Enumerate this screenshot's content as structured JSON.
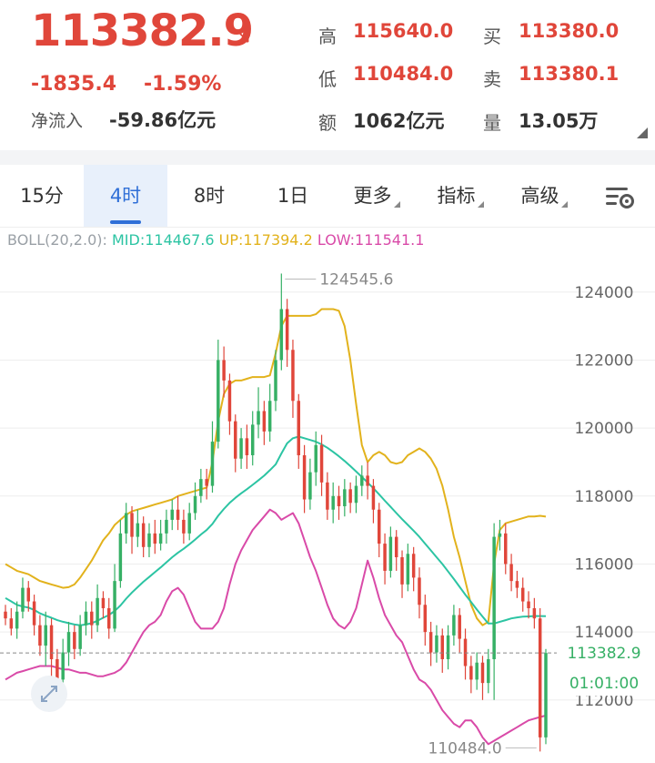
{
  "quote": {
    "price": "113382.9",
    "change": "-1835.4",
    "change_pct": "-1.59%",
    "netflow_label": "净流入",
    "netflow_value": "-59.86亿元",
    "stats": [
      {
        "label": "高",
        "value": "115640.0",
        "color": "#e0463a"
      },
      {
        "label": "买",
        "value": "113380.0",
        "color": "#e0463a"
      },
      {
        "label": "低",
        "value": "110484.0",
        "color": "#e0463a"
      },
      {
        "label": "卖",
        "value": "113380.1",
        "color": "#e0463a"
      },
      {
        "label": "额",
        "value": "1062亿元",
        "color": "#333333"
      },
      {
        "label": "量",
        "value": "13.05万",
        "color": "#333333"
      }
    ]
  },
  "tabs": [
    {
      "label": "15分",
      "active": false,
      "dropdown": false
    },
    {
      "label": "4时",
      "active": true,
      "dropdown": false
    },
    {
      "label": "8时",
      "active": false,
      "dropdown": false
    },
    {
      "label": "1日",
      "active": false,
      "dropdown": false
    },
    {
      "label": "更多",
      "active": false,
      "dropdown": true
    },
    {
      "label": "指标",
      "active": false,
      "dropdown": true
    },
    {
      "label": "高级",
      "active": false,
      "dropdown": true
    }
  ],
  "indicator": {
    "name": "BOLL(20,2.0):",
    "mid": "MID:114467.6",
    "up": "UP:117394.2",
    "low": "LOW:111541.1",
    "colors": {
      "name": "#9aa0a6",
      "mid": "#2cc4a3",
      "up": "#e2b21c",
      "low": "#d94aa8"
    }
  },
  "chart_data": {
    "type": "candlestick",
    "y_ticks": [
      124000,
      122000,
      120000,
      118000,
      116000,
      114000,
      112000
    ],
    "ylim": [
      110200,
      125200
    ],
    "current_price_label": "113382.9",
    "countdown": "01:01:00",
    "max_label": "124545.6",
    "min_label": "110484.0",
    "colors": {
      "up": "#36b065",
      "down": "#e0463a",
      "mid": "#2cc4a3",
      "upper": "#e2b21c",
      "lower": "#d94aa8",
      "price_line": "#888888"
    },
    "candles": [
      [
        114600,
        114400,
        114800,
        114200
      ],
      [
        114400,
        114100,
        114700,
        113900
      ],
      [
        114100,
        114600,
        114900,
        113800
      ],
      [
        114600,
        115300,
        115600,
        114400
      ],
      [
        115300,
        114900,
        115500,
        114600
      ],
      [
        114900,
        114200,
        115100,
        113900
      ],
      [
        114200,
        113600,
        114500,
        113300
      ],
      [
        113600,
        114200,
        114600,
        113000
      ],
      [
        114200,
        113200,
        114400,
        112700
      ],
      [
        113200,
        112600,
        113500,
        112300
      ],
      [
        112600,
        113400,
        113800,
        112300
      ],
      [
        113400,
        114000,
        114300,
        113000
      ],
      [
        114000,
        113500,
        114200,
        113200
      ],
      [
        113500,
        114200,
        114500,
        113300
      ],
      [
        114200,
        114600,
        114900,
        113900
      ],
      [
        114600,
        114200,
        114900,
        113800
      ],
      [
        114200,
        115000,
        115400,
        114000
      ],
      [
        115000,
        114700,
        115200,
        114400
      ],
      [
        114700,
        114100,
        115000,
        113800
      ],
      [
        114100,
        115500,
        116000,
        114000
      ],
      [
        115500,
        116900,
        117300,
        115300
      ],
      [
        116900,
        117500,
        117800,
        116600
      ],
      [
        117500,
        116800,
        117700,
        116300
      ],
      [
        116800,
        117200,
        117600,
        116500
      ],
      [
        117200,
        116500,
        117400,
        116200
      ],
      [
        116500,
        116900,
        117200,
        116200
      ],
      [
        116900,
        116600,
        117300,
        116300
      ],
      [
        116600,
        116900,
        117300,
        116400
      ],
      [
        116900,
        117300,
        117600,
        116600
      ],
      [
        117300,
        117600,
        117900,
        117000
      ],
      [
        117600,
        117300,
        118000,
        117000
      ],
      [
        117300,
        116900,
        117600,
        116600
      ],
      [
        116900,
        117500,
        117800,
        116700
      ],
      [
        117500,
        118000,
        118400,
        117300
      ],
      [
        118000,
        118500,
        118800,
        117800
      ],
      [
        118500,
        118300,
        118800,
        117900
      ],
      [
        118300,
        119600,
        120200,
        118100
      ],
      [
        119600,
        122000,
        122600,
        119400
      ],
      [
        122000,
        121400,
        122400,
        120900
      ],
      [
        121400,
        120200,
        121600,
        119800
      ],
      [
        120200,
        119100,
        120400,
        118700
      ],
      [
        119100,
        119700,
        120000,
        118800
      ],
      [
        119700,
        119200,
        120100,
        118800
      ],
      [
        119200,
        120100,
        120500,
        118900
      ],
      [
        120100,
        120500,
        121200,
        119700
      ],
      [
        120500,
        119900,
        120800,
        119500
      ],
      [
        119900,
        120800,
        121300,
        119600
      ],
      [
        120800,
        122000,
        122300,
        120500
      ],
      [
        122000,
        123500,
        124545,
        121700
      ],
      [
        123500,
        122300,
        123800,
        121800
      ],
      [
        122300,
        120800,
        122600,
        120300
      ],
      [
        120800,
        119200,
        121000,
        118800
      ],
      [
        119200,
        117900,
        119500,
        117500
      ],
      [
        117900,
        118700,
        119100,
        117600
      ],
      [
        118700,
        119500,
        119900,
        118300
      ],
      [
        119500,
        118400,
        119800,
        118000
      ],
      [
        118400,
        117600,
        118700,
        117300
      ],
      [
        117600,
        118000,
        118400,
        117200
      ],
      [
        118000,
        117700,
        118300,
        117300
      ],
      [
        117700,
        118200,
        118500,
        117400
      ],
      [
        118200,
        117800,
        118400,
        117500
      ],
      [
        117800,
        118300,
        118600,
        117500
      ],
      [
        118300,
        118600,
        118900,
        118000
      ],
      [
        118600,
        118300,
        119000,
        117900
      ],
      [
        118300,
        117600,
        118500,
        117200
      ],
      [
        117600,
        116600,
        117800,
        116200
      ],
      [
        116600,
        115800,
        116900,
        115400
      ],
      [
        115800,
        116800,
        117100,
        115600
      ],
      [
        116800,
        116200,
        117000,
        115800
      ],
      [
        116200,
        115400,
        116400,
        115000
      ],
      [
        115400,
        116300,
        116600,
        115200
      ],
      [
        116300,
        115600,
        116500,
        115200
      ],
      [
        115600,
        114800,
        115900,
        114400
      ],
      [
        114800,
        114000,
        115100,
        113600
      ],
      [
        114000,
        113400,
        114300,
        113000
      ],
      [
        113400,
        113900,
        114200,
        113100
      ],
      [
        113900,
        113200,
        114100,
        112800
      ],
      [
        113200,
        113900,
        114200,
        112900
      ],
      [
        113900,
        114500,
        114800,
        113600
      ],
      [
        114500,
        113800,
        114700,
        113400
      ],
      [
        113800,
        113000,
        114100,
        112600
      ],
      [
        113000,
        112600,
        113300,
        112200
      ],
      [
        112600,
        113100,
        113400,
        112300
      ],
      [
        113100,
        112500,
        113300,
        112000
      ],
      [
        112500,
        113200,
        113500,
        112200
      ],
      [
        113200,
        116800,
        117200,
        112000
      ],
      [
        116800,
        116900,
        117300,
        116400
      ],
      [
        116900,
        116000,
        117200,
        115700
      ],
      [
        116000,
        115500,
        116300,
        115200
      ],
      [
        115500,
        115300,
        115800,
        115000
      ],
      [
        115300,
        114900,
        115600,
        114600
      ],
      [
        114900,
        114700,
        115200,
        114400
      ],
      [
        114700,
        114400,
        115000,
        114100
      ],
      [
        114400,
        110900,
        114700,
        110484
      ],
      [
        110900,
        113382.9,
        113500,
        110700
      ]
    ],
    "mid": [
      115000,
      114900,
      114800,
      114750,
      114720,
      114650,
      114550,
      114480,
      114420,
      114350,
      114300,
      114260,
      114220,
      114200,
      114220,
      114260,
      114330,
      114420,
      114500,
      114620,
      114780,
      114980,
      115160,
      115320,
      115480,
      115620,
      115760,
      115900,
      116050,
      116200,
      116330,
      116450,
      116580,
      116720,
      116870,
      117000,
      117180,
      117420,
      117620,
      117800,
      117950,
      118080,
      118200,
      118330,
      118460,
      118600,
      118760,
      118930,
      119250,
      119550,
      119700,
      119750,
      119700,
      119650,
      119600,
      119520,
      119420,
      119300,
      119170,
      119030,
      118880,
      118720,
      118560,
      118400,
      118230,
      118050,
      117860,
      117680,
      117500,
      117320,
      117150,
      116980,
      116800,
      116600,
      116400,
      116200,
      116000,
      115780,
      115560,
      115330,
      115100,
      114880,
      114660,
      114450,
      114250,
      114250,
      114300,
      114350,
      114400,
      114430,
      114450,
      114460,
      114470,
      114470,
      114467.6
    ],
    "upper": [
      116000,
      115900,
      115800,
      115750,
      115700,
      115600,
      115500,
      115450,
      115400,
      115350,
      115300,
      115320,
      115400,
      115600,
      115850,
      116100,
      116400,
      116700,
      116900,
      117150,
      117300,
      117450,
      117550,
      117600,
      117650,
      117700,
      117750,
      117800,
      117850,
      117900,
      118000,
      118050,
      118100,
      118150,
      118200,
      118250,
      119000,
      120200,
      121000,
      121300,
      121400,
      121400,
      121450,
      121500,
      121500,
      121500,
      121550,
      122200,
      123000,
      123300,
      123300,
      123300,
      123300,
      123300,
      123350,
      123500,
      123500,
      123500,
      123450,
      123000,
      122000,
      120700,
      119500,
      119000,
      119200,
      119300,
      119200,
      119000,
      118950,
      119000,
      119200,
      119300,
      119400,
      119300,
      119100,
      118800,
      118300,
      117600,
      116800,
      116200,
      115500,
      114800,
      114400,
      114200,
      114300,
      116000,
      117000,
      117200,
      117250,
      117300,
      117350,
      117400,
      117400,
      117420,
      117394.2
    ],
    "lower": [
      112600,
      112700,
      112800,
      112850,
      112900,
      112950,
      113000,
      113000,
      113000,
      112950,
      112900,
      112900,
      112850,
      112800,
      112800,
      112750,
      112700,
      112700,
      112750,
      112800,
      112900,
      113100,
      113400,
      113700,
      114000,
      114200,
      114300,
      114500,
      114900,
      115200,
      115300,
      115100,
      114700,
      114300,
      114100,
      114100,
      114100,
      114300,
      114700,
      115400,
      116000,
      116400,
      116700,
      117000,
      117200,
      117400,
      117600,
      117500,
      117300,
      117400,
      117500,
      117200,
      116700,
      116200,
      115800,
      115300,
      114800,
      114400,
      114200,
      114100,
      114300,
      114700,
      115400,
      116100,
      115600,
      115000,
      114500,
      114200,
      113900,
      113700,
      113300,
      112900,
      112600,
      112500,
      112300,
      112000,
      111700,
      111500,
      111300,
      111200,
      111400,
      111400,
      111200,
      110900,
      110700,
      110800,
      110900,
      111000,
      111100,
      111200,
      111300,
      111400,
      111450,
      111500,
      111541.1
    ]
  }
}
